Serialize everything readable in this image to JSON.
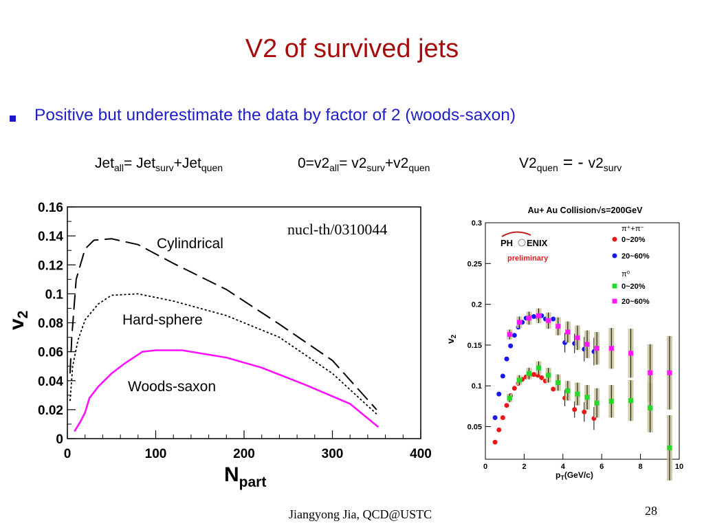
{
  "slide": {
    "title": "V2 of survived jets",
    "bullet": "Positive but underestimate the data by factor of 2 (woods-saxon)",
    "equations": {
      "eq1": {
        "a": "Jet",
        "a_sub": "all",
        "b": "= Jet",
        "b_sub": "surv",
        "c": "+Jet",
        "c_sub": "quen"
      },
      "eq2": {
        "a": "0=v2",
        "a_sub": "all",
        "b": "= v2",
        "b_sub": "surv",
        "c": "+v2",
        "c_sub": "quen"
      },
      "eq3": {
        "a": "V2",
        "a_sub": "quen",
        "b": " = - ",
        "c": "v2",
        "c_sub": "surv"
      }
    },
    "footer": "Jiangyong Jia,  QCD@USTC",
    "page_number": "28"
  },
  "chart_data": [
    {
      "type": "line",
      "annotation": "nucl-th/0310044",
      "xlabel": "N",
      "xlabel_sub": "part",
      "ylabel": "v",
      "ylabel_sub": "2",
      "xlim": [
        0,
        400
      ],
      "ylim": [
        0,
        0.16
      ],
      "xticks": [
        0,
        100,
        200,
        300,
        400
      ],
      "yticks": [
        0,
        0.02,
        0.04,
        0.06,
        0.08,
        0.1,
        0.12,
        0.14,
        0.16
      ],
      "ytick_labels": [
        "0",
        "0.02",
        "0.04",
        "0.06",
        "0.08",
        "0.1",
        "0.12",
        "0.14",
        "0.16"
      ],
      "series": [
        {
          "name": "Cylindrical",
          "style": "dashed",
          "color": "#000000",
          "x": [
            3,
            5,
            10,
            20,
            30,
            50,
            80,
            120,
            180,
            240,
            300,
            350
          ],
          "y": [
            0.045,
            0.07,
            0.11,
            0.131,
            0.137,
            0.138,
            0.134,
            0.121,
            0.103,
            0.079,
            0.054,
            0.02
          ]
        },
        {
          "name": "Hard-sphere",
          "style": "dotted",
          "color": "#000000",
          "x": [
            3,
            6,
            12,
            20,
            35,
            50,
            80,
            120,
            180,
            240,
            300,
            350
          ],
          "y": [
            0.026,
            0.05,
            0.068,
            0.082,
            0.093,
            0.099,
            0.1,
            0.095,
            0.085,
            0.07,
            0.045,
            0.017
          ]
        },
        {
          "name": "Woods-saxon",
          "style": "solid",
          "color": "#ff10ff",
          "x": [
            8,
            15,
            20,
            25,
            35,
            50,
            65,
            85,
            100,
            130,
            180,
            220,
            270,
            320,
            352
          ],
          "y": [
            0.005,
            0.012,
            0.018,
            0.028,
            0.036,
            0.045,
            0.052,
            0.06,
            0.061,
            0.061,
            0.056,
            0.049,
            0.037,
            0.024,
            0.008
          ]
        }
      ]
    },
    {
      "type": "scatter",
      "title": "Au+ Au Collision√s=200GeV",
      "xlabel": "p",
      "xlabel_sub": "T",
      "xlabel_rest": "(GeV/c)",
      "ylabel": "v",
      "ylabel_sub": "2",
      "xlim": [
        0,
        10
      ],
      "ylim": [
        0.01,
        0.3
      ],
      "xticks": [
        0,
        2,
        4,
        6,
        8,
        10
      ],
      "yticks": [
        0.05,
        0.1,
        0.15,
        0.2,
        0.25,
        0.3
      ],
      "ytick_labels": [
        "0.05",
        "0.1",
        "0.15",
        "0.2",
        "0.25",
        "0.3"
      ],
      "logo": {
        "text_left": "PH",
        "text_right": "ENIX",
        "sub": "preliminary"
      },
      "legend_position": "top-right",
      "legend_headers": [
        "π⁺+π⁻",
        "π⁰"
      ],
      "series": [
        {
          "name": "0~20%",
          "group": 0,
          "marker": "circle",
          "color": "#e81818",
          "x": [
            0.5,
            0.7,
            0.9,
            1.1,
            1.3,
            1.5,
            1.7,
            1.9,
            2.1,
            2.3,
            2.5,
            2.7,
            2.9,
            3.1,
            3.5,
            4.1,
            4.6,
            5.1,
            5.6
          ],
          "y": [
            0.031,
            0.046,
            0.061,
            0.076,
            0.088,
            0.097,
            0.103,
            0.108,
            0.111,
            0.113,
            0.114,
            0.113,
            0.11,
            0.106,
            0.096,
            0.085,
            0.071,
            0.068,
            0.06
          ],
          "err": [
            0,
            0,
            0,
            0,
            0,
            0,
            0,
            0,
            0,
            0,
            0,
            0,
            0,
            0,
            0,
            0.01,
            0.01,
            0.012,
            0.014
          ]
        },
        {
          "name": "20~60%",
          "group": 0,
          "marker": "circle",
          "color": "#1818e8",
          "x": [
            0.5,
            0.7,
            0.9,
            1.1,
            1.3,
            1.5,
            1.7,
            1.9,
            2.1,
            2.3,
            2.5,
            2.7,
            2.9,
            3.1,
            3.5,
            4.1,
            4.6,
            5.1,
            5.6
          ],
          "y": [
            0.061,
            0.09,
            0.112,
            0.133,
            0.149,
            0.162,
            0.172,
            0.178,
            0.183,
            0.185,
            0.185,
            0.184,
            0.186,
            0.182,
            0.182,
            0.153,
            0.152,
            0.145,
            0.142
          ],
          "err": [
            0,
            0,
            0,
            0,
            0,
            0,
            0,
            0,
            0,
            0,
            0,
            0,
            0,
            0,
            0,
            0.012,
            0.012,
            0.015,
            0.017
          ]
        },
        {
          "name": "0~20%",
          "group": 1,
          "marker": "square",
          "color": "#28d828",
          "x": [
            1.25,
            1.75,
            2.25,
            2.75,
            3.25,
            3.75,
            4.25,
            4.75,
            5.25,
            5.75,
            6.5,
            7.5,
            8.5,
            9.5
          ],
          "y": [
            0.085,
            0.107,
            0.115,
            0.122,
            0.113,
            0.104,
            0.094,
            0.09,
            0.086,
            0.079,
            0.081,
            0.082,
            0.073,
            0.024
          ],
          "err": [
            0.005,
            0.006,
            0.007,
            0.008,
            0.009,
            0.01,
            0.012,
            0.014,
            0.015,
            0.018,
            0.02,
            0.025,
            0.03,
            0.04
          ]
        },
        {
          "name": "20~60%",
          "group": 1,
          "marker": "square",
          "color": "#ff18ff",
          "x": [
            1.25,
            1.75,
            2.25,
            2.75,
            3.25,
            3.75,
            4.25,
            4.75,
            5.25,
            5.75,
            6.5,
            7.5,
            8.5,
            9.5
          ],
          "y": [
            0.163,
            0.178,
            0.183,
            0.186,
            0.18,
            0.173,
            0.166,
            0.159,
            0.151,
            0.146,
            0.146,
            0.14,
            0.116,
            0.116
          ],
          "err": [
            0.006,
            0.007,
            0.008,
            0.009,
            0.01,
            0.011,
            0.013,
            0.015,
            0.017,
            0.02,
            0.025,
            0.03,
            0.035,
            0.045
          ]
        }
      ]
    }
  ]
}
